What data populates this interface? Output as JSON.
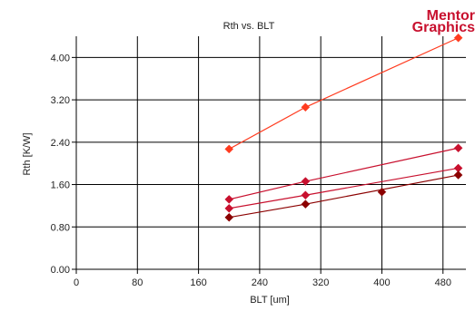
{
  "chart_data": {
    "type": "scatter",
    "title": "Rth vs. BLT",
    "xlabel": "BLT [um]",
    "ylabel": "Rth [K/W]",
    "xlim": [
      0,
      510
    ],
    "ylim": [
      0,
      4.4
    ],
    "xticks": [
      0,
      80,
      160,
      240,
      320,
      400,
      480
    ],
    "yticks": [
      0.0,
      0.8,
      1.6,
      2.4,
      3.2,
      4.0
    ],
    "xtick_labels": [
      "0",
      "80",
      "160",
      "240",
      "320",
      "400",
      "480"
    ],
    "ytick_labels": [
      "0.00",
      "0.80",
      "1.60",
      "2.40",
      "3.20",
      "4.00"
    ],
    "grid": true,
    "series": [
      {
        "color": "#ff3b1f",
        "line": true,
        "x": [
          200,
          300,
          500
        ],
        "y": [
          2.27,
          3.06,
          4.37
        ]
      },
      {
        "color": "#c8102e",
        "line": true,
        "x": [
          200,
          300,
          500
        ],
        "y": [
          1.32,
          1.66,
          2.29
        ]
      },
      {
        "color": "#c8102e",
        "line": true,
        "x": [
          200,
          300,
          500
        ],
        "y": [
          1.15,
          1.4,
          1.91
        ]
      },
      {
        "color": "#8b0000",
        "line": true,
        "x": [
          200,
          300,
          500
        ],
        "y": [
          0.98,
          1.23,
          1.78
        ]
      },
      {
        "color": "#8b0000",
        "line": false,
        "x": [
          400
        ],
        "y": [
          1.46
        ]
      }
    ]
  },
  "brand": {
    "line1": "Mentor",
    "line2": "Graphics",
    "color": "#c8102e"
  }
}
